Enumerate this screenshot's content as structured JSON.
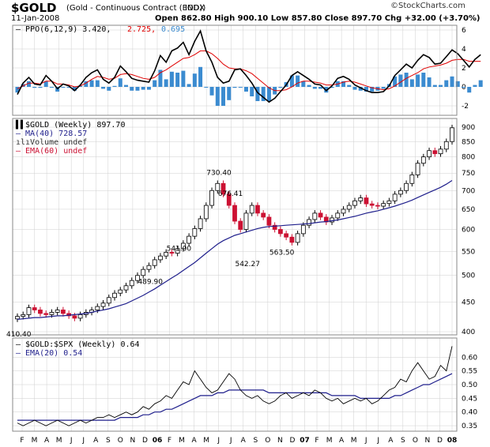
{
  "header": {
    "symbol": "$GOLD",
    "description": "(Gold - Continuous Contract (EOD))",
    "exchange": "INDX",
    "copyright": "©StockCharts.com",
    "date": "11-Jan-2008",
    "quote": "Open 862.80  High 900.10  Low 857.80  Close 897.70  Chg +32.00 (+3.70%)"
  },
  "colors": {
    "grid": "#cfcfcf",
    "ppo_line": "#000000",
    "signal": "#e00000",
    "histogram": "#3b8bd0",
    "up_candle": "#ffffff",
    "down_candle": "#cc1133",
    "ma40": "#1f1f8c",
    "ema_ratio": "#1f1f8c"
  },
  "chart_data": [
    {
      "type": "line",
      "title": "PPO(6,12,9)",
      "legend": [
        {
          "label": "PPO(6,12,9)",
          "value": "3.420"
        },
        {
          "label": "",
          "value": "2.725"
        },
        {
          "label": "",
          "value": "0.695"
        }
      ],
      "ylim": [
        -3,
        6.5
      ],
      "yticks": [
        -2,
        0,
        2,
        4,
        6
      ],
      "series": [
        {
          "name": "PPO",
          "values": [
            -0.8,
            0.4,
            1.0,
            0.3,
            0.2,
            1.2,
            0.6,
            -0.2,
            0.3,
            0.1,
            -0.4,
            0.2,
            1.0,
            1.5,
            1.8,
            0.8,
            0.4,
            1.0,
            2.2,
            1.6,
            0.9,
            0.7,
            0.6,
            0.5,
            1.7,
            3.3,
            2.6,
            3.8,
            4.1,
            4.7,
            3.4,
            4.8,
            5.9,
            3.8,
            2.6,
            1.0,
            0.4,
            0.6,
            1.8,
            1.9,
            1.2,
            0.4,
            -0.6,
            -1.1,
            -1.6,
            -1.2,
            -0.5,
            0.2,
            1.2,
            1.6,
            1.2,
            0.8,
            0.3,
            0.2,
            -0.4,
            0.1,
            0.9,
            1.1,
            0.8,
            0.2,
            -0.1,
            -0.4,
            -0.6,
            -0.6,
            -0.5,
            0.1,
            1.2,
            1.8,
            2.4,
            2.0,
            2.8,
            3.4,
            3.1,
            2.4,
            2.5,
            3.2,
            3.9,
            3.5,
            2.8,
            2.1,
            2.9,
            3.4
          ]
        },
        {
          "name": "Signal",
          "values": [
            -0.2,
            0.1,
            0.4,
            0.4,
            0.3,
            0.6,
            0.6,
            0.3,
            0.3,
            0.2,
            0.0,
            0.1,
            0.4,
            0.8,
            1.1,
            1.0,
            0.8,
            0.9,
            1.3,
            1.4,
            1.3,
            1.1,
            0.9,
            0.8,
            1.0,
            1.5,
            1.8,
            2.2,
            2.6,
            3.0,
            3.1,
            3.4,
            3.8,
            3.8,
            3.5,
            3.0,
            2.4,
            2.0,
            1.9,
            1.9,
            1.7,
            1.4,
            0.9,
            0.4,
            -0.1,
            -0.4,
            -0.4,
            -0.3,
            0.0,
            0.4,
            0.6,
            0.6,
            0.5,
            0.4,
            0.2,
            0.2,
            0.3,
            0.5,
            0.6,
            0.5,
            0.3,
            0.1,
            -0.1,
            -0.2,
            -0.3,
            -0.2,
            0.1,
            0.5,
            0.9,
            1.2,
            1.5,
            1.9,
            2.1,
            2.2,
            2.3,
            2.5,
            2.8,
            2.9,
            2.9,
            2.7,
            2.7,
            2.7
          ]
        }
      ]
    },
    {
      "type": "candlestick",
      "title": "$GOLD (Weekly)",
      "legend": [
        {
          "label": "$GOLD (Weekly)",
          "value": "897.70"
        },
        {
          "label": "MA(40)",
          "value": "728.57"
        },
        {
          "label": "Volume",
          "value": "undef"
        },
        {
          "label": "EMA(60)",
          "value": "undef"
        }
      ],
      "yscale": "log",
      "ylim": [
        400,
        920
      ],
      "yticks": [
        400,
        450,
        500,
        550,
        600,
        650,
        700,
        750,
        800,
        850,
        900
      ],
      "annotations": [
        {
          "label": "730.40",
          "value": 730.4
        },
        {
          "label": "676.41",
          "value": 676.41
        },
        {
          "label": "541.00",
          "value": 541.0
        },
        {
          "label": "542.27",
          "value": 542.27
        },
        {
          "label": "563.50",
          "value": 563.5
        },
        {
          "label": "489.90",
          "value": 489.9
        },
        {
          "label": "410.40",
          "value": 410.4
        }
      ],
      "close": [
        425,
        428,
        440,
        436,
        430,
        428,
        432,
        436,
        430,
        426,
        422,
        428,
        432,
        436,
        442,
        448,
        458,
        466,
        472,
        480,
        490,
        500,
        512,
        520,
        532,
        540,
        548,
        546,
        556,
        568,
        584,
        602,
        626,
        660,
        700,
        720,
        690,
        660,
        620,
        600,
        640,
        660,
        640,
        630,
        610,
        600,
        590,
        582,
        570,
        590,
        610,
        624,
        640,
        630,
        618,
        628,
        640,
        650,
        660,
        672,
        680,
        664,
        660,
        658,
        665,
        672,
        690,
        700,
        720,
        745,
        780,
        800,
        820,
        810,
        825,
        850,
        897.7
      ],
      "ma40": [
        420,
        421,
        422,
        423,
        423,
        424,
        425,
        426,
        426,
        427,
        428,
        429,
        430,
        432,
        434,
        436,
        438,
        441,
        444,
        447,
        452,
        457,
        462,
        468,
        474,
        481,
        488,
        495,
        502,
        510,
        518,
        526,
        536,
        546,
        556,
        566,
        574,
        580,
        586,
        590,
        594,
        598,
        602,
        605,
        607,
        608,
        609,
        610,
        611,
        612,
        613,
        614,
        616,
        618,
        619,
        621,
        623,
        626,
        629,
        632,
        636,
        640,
        643,
        646,
        650,
        654,
        658,
        663,
        668,
        674,
        681,
        688,
        695,
        702,
        709,
        718,
        728.57
      ]
    },
    {
      "type": "line",
      "title": "$GOLD:$SPX (Weekly)",
      "legend": [
        {
          "label": "$GOLD:$SPX (Weekly)",
          "value": "0.64"
        },
        {
          "label": "EMA(20)",
          "value": "0.54"
        }
      ],
      "ylim": [
        0.33,
        0.67
      ],
      "yticks": [
        0.35,
        0.4,
        0.45,
        0.5,
        0.55,
        0.6
      ],
      "series": [
        {
          "name": "$GOLD:$SPX",
          "values": [
            0.36,
            0.35,
            0.36,
            0.37,
            0.36,
            0.35,
            0.36,
            0.37,
            0.36,
            0.35,
            0.36,
            0.37,
            0.36,
            0.37,
            0.38,
            0.38,
            0.39,
            0.38,
            0.39,
            0.4,
            0.39,
            0.4,
            0.42,
            0.41,
            0.43,
            0.44,
            0.46,
            0.45,
            0.48,
            0.51,
            0.5,
            0.55,
            0.52,
            0.49,
            0.47,
            0.48,
            0.51,
            0.54,
            0.52,
            0.48,
            0.46,
            0.45,
            0.46,
            0.44,
            0.43,
            0.44,
            0.46,
            0.47,
            0.45,
            0.46,
            0.47,
            0.46,
            0.48,
            0.47,
            0.45,
            0.44,
            0.45,
            0.43,
            0.44,
            0.45,
            0.44,
            0.45,
            0.43,
            0.44,
            0.46,
            0.48,
            0.49,
            0.52,
            0.51,
            0.55,
            0.58,
            0.55,
            0.52,
            0.53,
            0.57,
            0.55,
            0.64
          ]
        },
        {
          "name": "EMA(20)",
          "values": [
            0.37,
            0.37,
            0.37,
            0.37,
            0.37,
            0.37,
            0.37,
            0.37,
            0.37,
            0.37,
            0.37,
            0.37,
            0.37,
            0.37,
            0.37,
            0.37,
            0.37,
            0.37,
            0.38,
            0.38,
            0.38,
            0.38,
            0.39,
            0.39,
            0.4,
            0.4,
            0.41,
            0.41,
            0.42,
            0.43,
            0.44,
            0.45,
            0.46,
            0.46,
            0.46,
            0.47,
            0.47,
            0.48,
            0.48,
            0.48,
            0.48,
            0.48,
            0.48,
            0.48,
            0.47,
            0.47,
            0.47,
            0.47,
            0.47,
            0.47,
            0.47,
            0.47,
            0.47,
            0.47,
            0.47,
            0.46,
            0.46,
            0.46,
            0.46,
            0.46,
            0.45,
            0.45,
            0.45,
            0.45,
            0.45,
            0.45,
            0.46,
            0.46,
            0.47,
            0.48,
            0.49,
            0.5,
            0.5,
            0.51,
            0.52,
            0.53,
            0.54
          ]
        }
      ]
    }
  ],
  "xaxis": {
    "labels": [
      "F",
      "M",
      "A",
      "M",
      "J",
      "J",
      "A",
      "S",
      "O",
      "N",
      "D",
      "06",
      "F",
      "M",
      "A",
      "M",
      "J",
      "J",
      "A",
      "S",
      "O",
      "N",
      "D",
      "07",
      "F",
      "M",
      "A",
      "M",
      "J",
      "J",
      "A",
      "S",
      "O",
      "N",
      "D",
      "08"
    ],
    "bold": [
      "06",
      "07",
      "08"
    ]
  }
}
